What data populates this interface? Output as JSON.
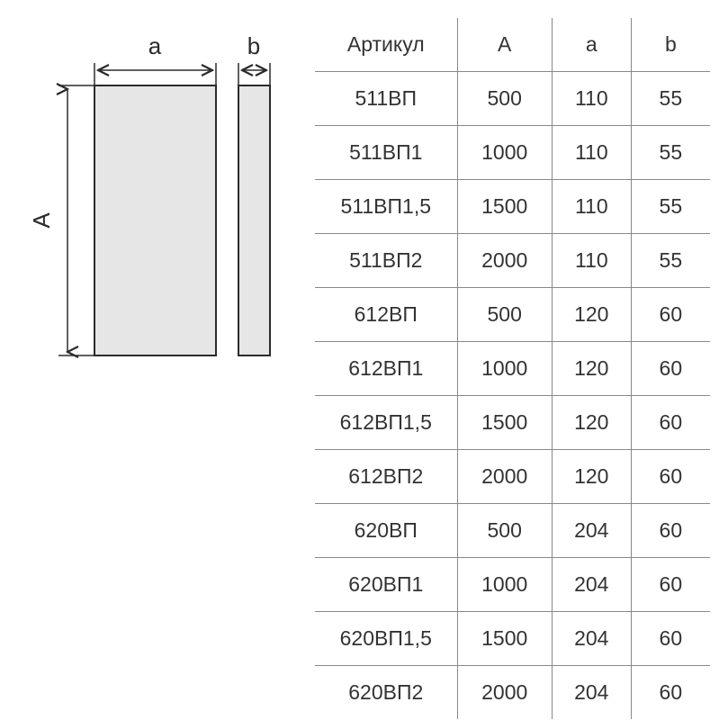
{
  "diagram": {
    "label_A": "A",
    "label_a": "a",
    "label_b": "b",
    "stroke_color": "#2b2b2b",
    "fill_color": "#e6e6e6",
    "background": "#ffffff",
    "font_size": 26,
    "line_width": 2,
    "dim_line_width": 1.5
  },
  "table": {
    "columns": [
      "Артикул",
      "A",
      "a",
      "b"
    ],
    "rows": [
      [
        "511ВП",
        "500",
        "110",
        "55"
      ],
      [
        "511ВП1",
        "1000",
        "110",
        "55"
      ],
      [
        "511ВП1,5",
        "1500",
        "110",
        "55"
      ],
      [
        "511ВП2",
        "2000",
        "110",
        "55"
      ],
      [
        "612ВП",
        "500",
        "120",
        "60"
      ],
      [
        "612ВП1",
        "1000",
        "120",
        "60"
      ],
      [
        "612ВП1,5",
        "1500",
        "120",
        "60"
      ],
      [
        "612ВП2",
        "2000",
        "120",
        "60"
      ],
      [
        "620ВП",
        "500",
        "204",
        "60"
      ],
      [
        "620ВП1",
        "1000",
        "204",
        "60"
      ],
      [
        "620ВП1,5",
        "1500",
        "204",
        "60"
      ],
      [
        "620ВП2",
        "2000",
        "204",
        "60"
      ]
    ],
    "header_fontsize": 23,
    "cell_fontsize": 23,
    "text_color": "#333333",
    "border_color": "#888888"
  }
}
